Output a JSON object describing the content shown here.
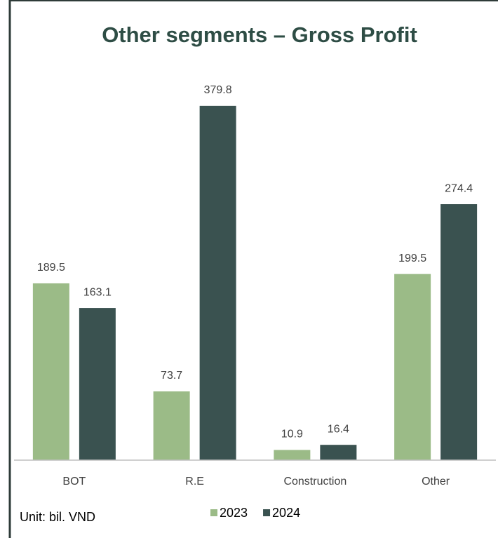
{
  "chart_data": {
    "type": "bar",
    "title": "Other segments – Gross Profit",
    "categories": [
      "BOT",
      "R.E",
      "Construction",
      "Other"
    ],
    "series": [
      {
        "name": "2023",
        "color": "#9bbb87",
        "values": [
          189.5,
          73.7,
          10.9,
          199.5
        ]
      },
      {
        "name": "2024",
        "color": "#3a5250",
        "values": [
          163.1,
          379.8,
          16.4,
          274.4
        ]
      }
    ],
    "ylim": [
      0,
      400
    ],
    "annotation": "Unit: bil. VND",
    "legend": "bottom"
  }
}
